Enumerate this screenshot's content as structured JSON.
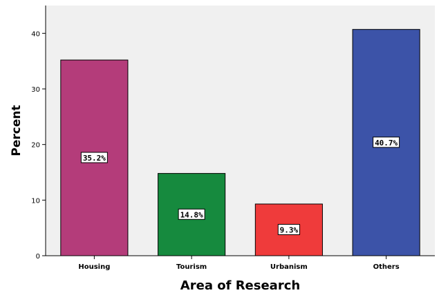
{
  "chart_data": {
    "type": "bar",
    "categories": [
      "Housing",
      "Tourism",
      "Urbanism",
      "Others"
    ],
    "values": [
      35.2,
      14.8,
      9.3,
      40.7
    ],
    "data_labels": [
      "35.2%",
      "14.8%",
      "9.3%",
      "40.7%"
    ],
    "colors": [
      "#b43c7a",
      "#168a3e",
      "#ef3b3b",
      "#3c53a8"
    ],
    "plot_background": "#f0f0f0",
    "xlabel": "Area of Research",
    "ylabel": "Percent",
    "ylim": [
      0,
      45
    ],
    "yticks": [
      0,
      10,
      20,
      30,
      40
    ],
    "grid": false
  }
}
